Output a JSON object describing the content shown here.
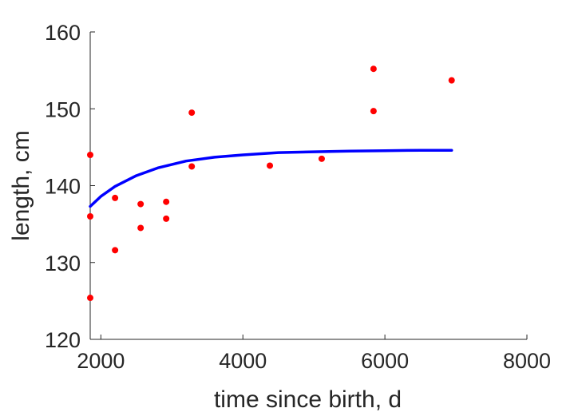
{
  "chart_data": {
    "type": "scatter",
    "title": "",
    "xlabel": "time since birth, d",
    "ylabel": "length, cm",
    "xlim": [
      1850,
      8000
    ],
    "ylim": [
      120,
      160
    ],
    "xticks": [
      2000,
      4000,
      6000,
      8000
    ],
    "yticks": [
      120,
      130,
      140,
      150,
      160
    ],
    "grid": false,
    "legend": "none",
    "series": [
      {
        "kind": "scatter",
        "color": "#ff0000",
        "points": [
          {
            "x": 1850,
            "y": 144.0
          },
          {
            "x": 1850,
            "y": 136.0
          },
          {
            "x": 1850,
            "y": 125.4
          },
          {
            "x": 2200,
            "y": 138.4
          },
          {
            "x": 2200,
            "y": 131.6
          },
          {
            "x": 2560,
            "y": 137.6
          },
          {
            "x": 2560,
            "y": 134.5
          },
          {
            "x": 2920,
            "y": 137.9
          },
          {
            "x": 2920,
            "y": 135.7
          },
          {
            "x": 3280,
            "y": 149.5
          },
          {
            "x": 3280,
            "y": 142.5
          },
          {
            "x": 4380,
            "y": 142.6
          },
          {
            "x": 5110,
            "y": 143.5
          },
          {
            "x": 5840,
            "y": 155.2
          },
          {
            "x": 5840,
            "y": 149.7
          },
          {
            "x": 6940,
            "y": 153.7
          }
        ]
      },
      {
        "kind": "line",
        "color": "#0000ff",
        "points": [
          {
            "x": 1850,
            "y": 137.3
          },
          {
            "x": 2000,
            "y": 138.6
          },
          {
            "x": 2200,
            "y": 139.9
          },
          {
            "x": 2500,
            "y": 141.3
          },
          {
            "x": 2800,
            "y": 142.3
          },
          {
            "x": 3200,
            "y": 143.2
          },
          {
            "x": 3600,
            "y": 143.7
          },
          {
            "x": 4000,
            "y": 144.0
          },
          {
            "x": 4500,
            "y": 144.3
          },
          {
            "x": 5000,
            "y": 144.4
          },
          {
            "x": 5500,
            "y": 144.5
          },
          {
            "x": 6000,
            "y": 144.55
          },
          {
            "x": 6500,
            "y": 144.6
          },
          {
            "x": 6940,
            "y": 144.6
          }
        ]
      }
    ]
  }
}
